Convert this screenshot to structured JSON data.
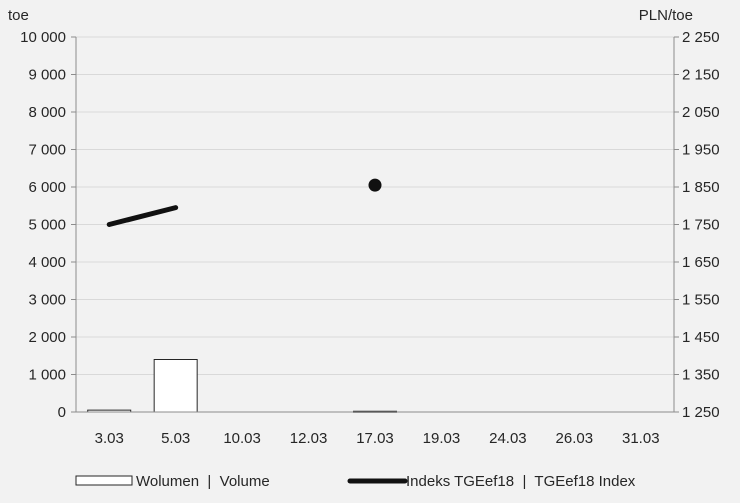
{
  "chart_data": {
    "type": "bar",
    "categories": [
      "3.03",
      "5.03",
      "10.03",
      "12.03",
      "17.03",
      "19.03",
      "24.03",
      "26.03",
      "31.03"
    ],
    "left_axis": {
      "unit": "toe",
      "range": [
        0,
        10000
      ],
      "ticks": [
        "0",
        "1 000",
        "2 000",
        "3 000",
        "4 000",
        "5 000",
        "6 000",
        "7 000",
        "8 000",
        "9 000",
        "10 000"
      ]
    },
    "right_axis": {
      "unit": "PLN/toe",
      "range": [
        1250,
        2250
      ],
      "ticks": [
        "1 250",
        "1 350",
        "1 450",
        "1 550",
        "1 650",
        "1 750",
        "1 850",
        "1 950",
        "2 050",
        "2 150",
        "2 250"
      ]
    },
    "series": [
      {
        "name": "Wolumen  |  Volume",
        "kind": "bar",
        "axis": "left",
        "values": [
          50,
          1400,
          0,
          0,
          20,
          0,
          0,
          0,
          0
        ]
      },
      {
        "name": "Indeks TGEef18  |  TGEef18 Index",
        "kind": "line",
        "axis": "right",
        "values": [
          1750,
          1795,
          null,
          null,
          1855,
          null,
          null,
          null,
          null
        ]
      }
    ],
    "grid": "horizontal",
    "legend": "bottom",
    "colors": {
      "bar_fill": "#ffffff",
      "bar_stroke": "#262626",
      "line": "#111111",
      "grid": "#d9d9d9",
      "axis": "#8c8c8c"
    }
  }
}
